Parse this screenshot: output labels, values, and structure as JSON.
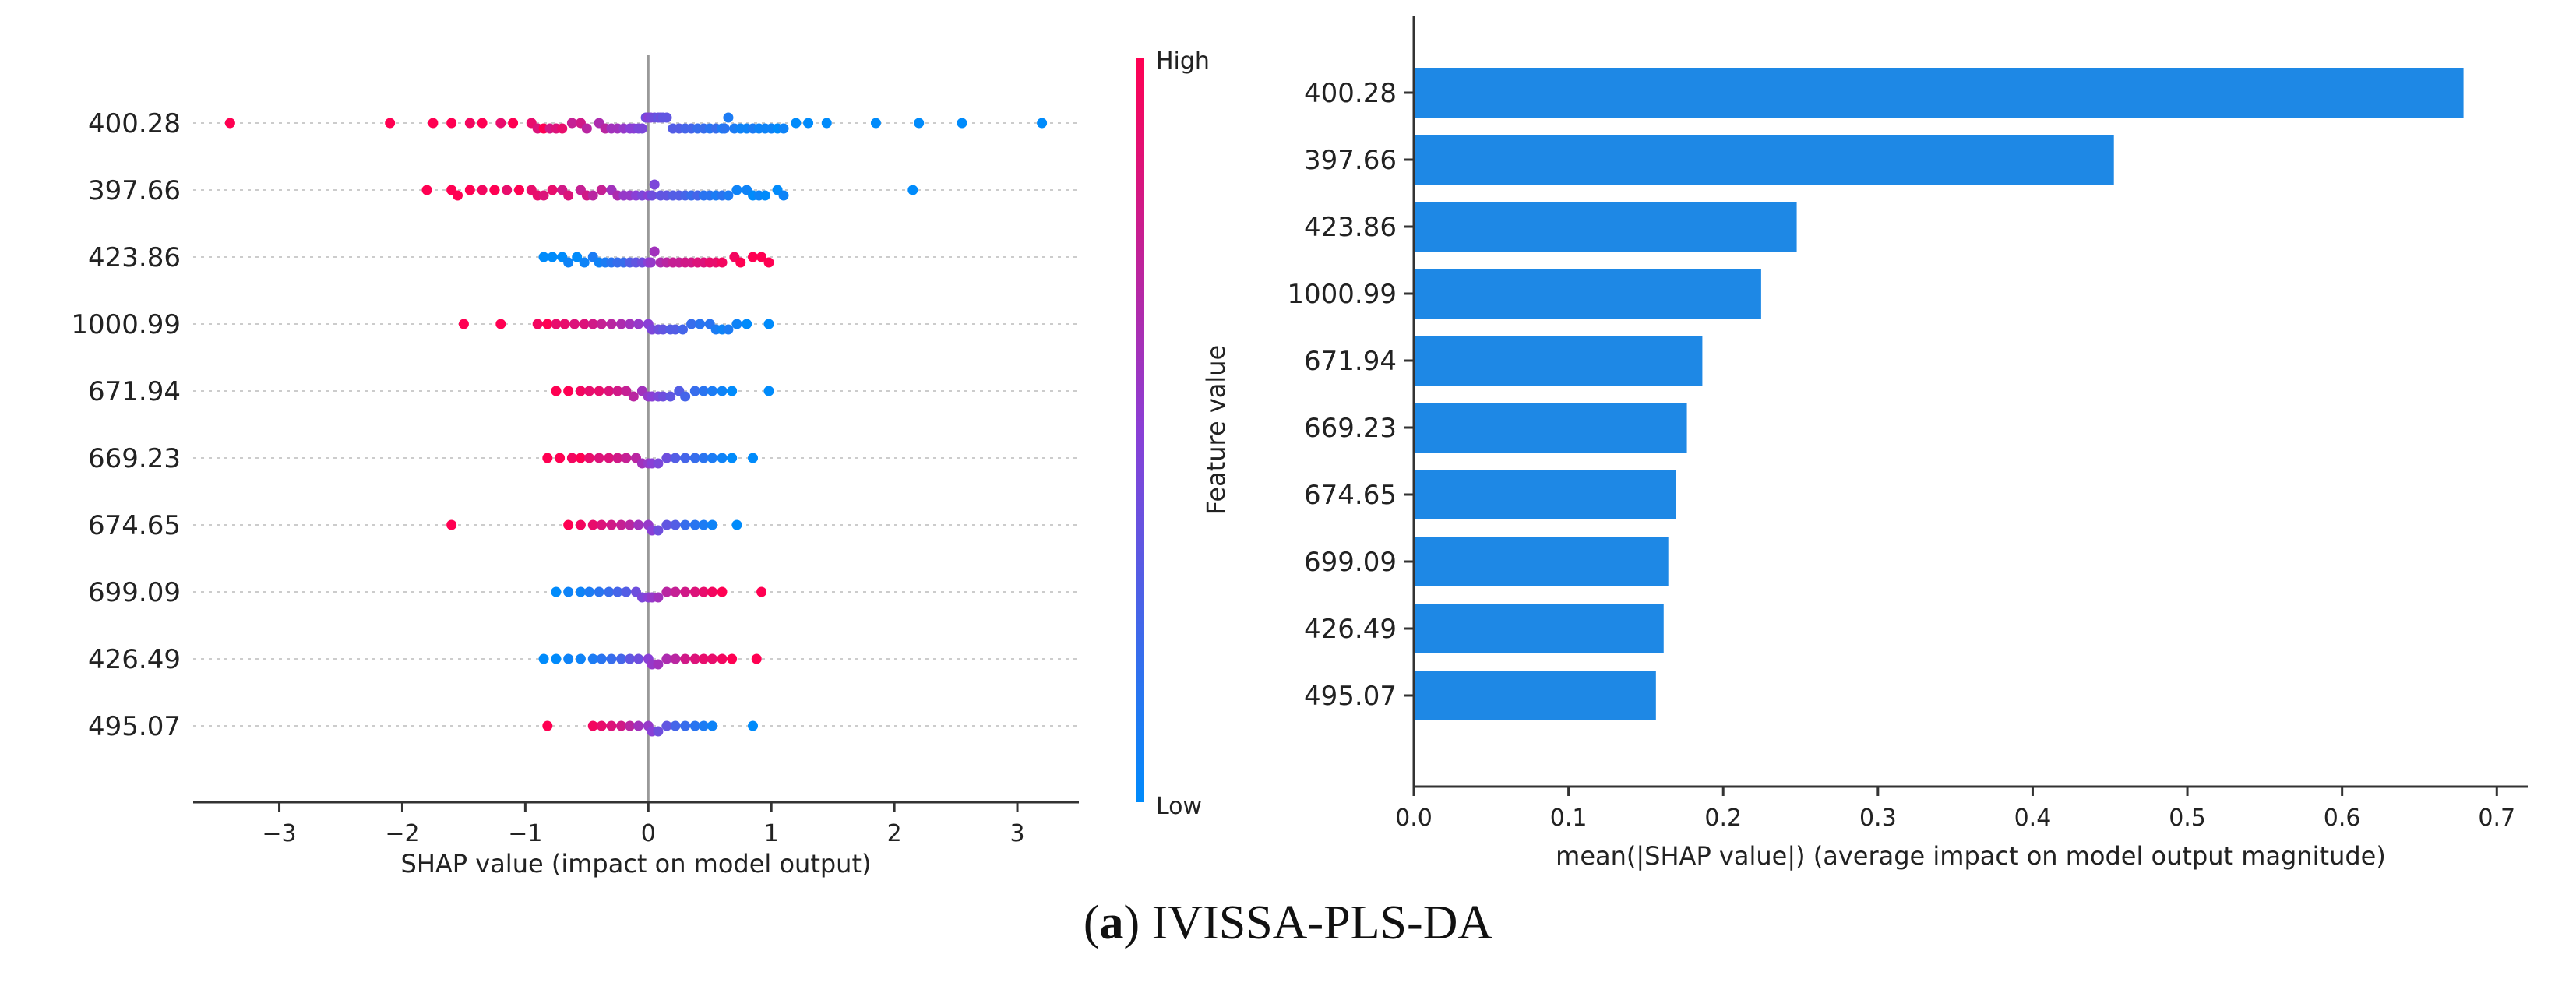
{
  "caption": {
    "label": "a",
    "text": "IVISSA-PLS-DA"
  },
  "colors": {
    "high": "#ff0052",
    "low": "#008bfb",
    "bar": "#1e88e5",
    "axis": "#333333",
    "grid": "#dddddd"
  },
  "chart_data": [
    {
      "type": "scatter",
      "subtype": "shap-beeswarm",
      "features": [
        "400.28",
        "397.66",
        "423.86",
        "1000.99",
        "671.94",
        "669.23",
        "674.65",
        "699.09",
        "426.49",
        "495.07"
      ],
      "xlabel": "SHAP value (impact on model output)",
      "xlim": [
        -3.7,
        3.5
      ],
      "xticks": [
        -3,
        -2,
        -1,
        0,
        1,
        2,
        3
      ],
      "xtick_labels": [
        "−3",
        "−2",
        "−1",
        "0",
        "1",
        "2",
        "3"
      ],
      "colorbar": {
        "high_label": "High",
        "low_label": "Low",
        "title": "Feature value"
      },
      "series": [
        {
          "feature": "400.28",
          "values": [
            -3.4,
            -2.1,
            -1.75,
            -1.6,
            -1.45,
            -1.35,
            -1.2,
            -1.1,
            -0.95,
            -0.9,
            -0.85,
            -0.8,
            -0.75,
            -0.7,
            -0.62,
            -0.55,
            -0.5,
            -0.4,
            -0.35,
            -0.3,
            -0.25,
            -0.2,
            -0.15,
            -0.12,
            -0.08,
            -0.05,
            -0.02,
            0.0,
            0.02,
            0.05,
            0.08,
            0.1,
            0.12,
            0.15,
            0.2,
            0.25,
            0.3,
            0.35,
            0.4,
            0.45,
            0.5,
            0.55,
            0.6,
            0.62,
            0.65,
            0.7,
            0.75,
            0.8,
            0.85,
            0.9,
            0.95,
            1.0,
            1.05,
            1.1,
            1.2,
            1.3,
            1.45,
            1.85,
            2.2,
            2.55,
            3.2
          ],
          "colors": [
            1,
            1,
            1,
            1,
            0.95,
            1,
            0.9,
            1,
            0.9,
            0.85,
            1,
            0.8,
            0.85,
            0.9,
            0.75,
            0.8,
            0.7,
            0.65,
            0.7,
            0.6,
            0.6,
            0.55,
            0.5,
            0.5,
            0.45,
            0.45,
            0.4,
            0.5,
            0.45,
            0.4,
            0.35,
            0.4,
            0.35,
            0.35,
            0.3,
            0.3,
            0.25,
            0.25,
            0.2,
            0.2,
            0.15,
            0.2,
            0.1,
            0.15,
            0.1,
            0.1,
            0.05,
            0.05,
            0.1,
            0.05,
            0.05,
            0.05,
            0.0,
            0.05,
            0.0,
            0.0,
            0.0,
            0.0,
            0.0,
            0.0,
            0.0
          ]
        },
        {
          "feature": "397.66",
          "values": [
            -1.8,
            -1.6,
            -1.55,
            -1.45,
            -1.35,
            -1.25,
            -1.15,
            -1.05,
            -0.95,
            -0.9,
            -0.85,
            -0.78,
            -0.7,
            -0.65,
            -0.55,
            -0.5,
            -0.45,
            -0.38,
            -0.3,
            -0.25,
            -0.2,
            -0.15,
            -0.1,
            -0.05,
            0.0,
            0.03,
            0.05,
            0.1,
            0.15,
            0.2,
            0.25,
            0.3,
            0.35,
            0.4,
            0.45,
            0.5,
            0.55,
            0.6,
            0.65,
            0.72,
            0.8,
            0.85,
            0.9,
            0.95,
            1.05,
            1.1,
            2.15
          ],
          "colors": [
            1,
            1,
            1,
            1,
            0.95,
            1,
            0.9,
            1,
            0.9,
            0.9,
            0.85,
            0.9,
            0.8,
            0.85,
            0.75,
            0.8,
            0.7,
            0.75,
            0.6,
            0.65,
            0.55,
            0.55,
            0.5,
            0.45,
            0.5,
            0.4,
            0.45,
            0.35,
            0.35,
            0.3,
            0.3,
            0.25,
            0.2,
            0.25,
            0.15,
            0.15,
            0.1,
            0.15,
            0.1,
            0.05,
            0.05,
            0.0,
            0.05,
            0.0,
            0.0,
            0.05,
            0.0
          ]
        },
        {
          "feature": "423.86",
          "values": [
            -0.85,
            -0.78,
            -0.7,
            -0.65,
            -0.58,
            -0.52,
            -0.45,
            -0.4,
            -0.35,
            -0.3,
            -0.25,
            -0.2,
            -0.15,
            -0.1,
            -0.05,
            0.0,
            0.02,
            0.05,
            0.1,
            0.15,
            0.2,
            0.25,
            0.3,
            0.35,
            0.4,
            0.45,
            0.5,
            0.55,
            0.6,
            0.7,
            0.75,
            0.85,
            0.92,
            0.98
          ],
          "colors": [
            0,
            0,
            0,
            0.05,
            0,
            0.05,
            0.1,
            0.05,
            0.1,
            0.15,
            0.2,
            0.2,
            0.3,
            0.35,
            0.4,
            0.5,
            0.55,
            0.6,
            0.65,
            0.7,
            0.75,
            0.75,
            0.8,
            0.8,
            0.85,
            0.85,
            0.9,
            0.9,
            0.95,
            0.95,
            1,
            1,
            1,
            1
          ]
        },
        {
          "feature": "1000.99",
          "values": [
            -1.5,
            -1.2,
            -0.9,
            -0.82,
            -0.75,
            -0.68,
            -0.6,
            -0.52,
            -0.45,
            -0.38,
            -0.3,
            -0.22,
            -0.15,
            -0.08,
            0.0,
            0.03,
            0.08,
            0.12,
            0.18,
            0.22,
            0.28,
            0.35,
            0.42,
            0.5,
            0.55,
            0.6,
            0.65,
            0.72,
            0.8,
            0.98
          ],
          "colors": [
            1,
            1,
            0.95,
            1,
            0.9,
            0.9,
            0.85,
            0.85,
            0.8,
            0.75,
            0.7,
            0.65,
            0.6,
            0.55,
            0.5,
            0.45,
            0.4,
            0.35,
            0.3,
            0.3,
            0.25,
            0.2,
            0.15,
            0.15,
            0.1,
            0.05,
            0.1,
            0.05,
            0,
            0
          ]
        },
        {
          "feature": "671.94",
          "values": [
            -0.75,
            -0.65,
            -0.55,
            -0.48,
            -0.4,
            -0.32,
            -0.25,
            -0.18,
            -0.12,
            -0.05,
            0.0,
            0.03,
            0.08,
            0.12,
            0.18,
            0.25,
            0.3,
            0.38,
            0.45,
            0.52,
            0.6,
            0.68,
            0.98
          ],
          "colors": [
            1,
            1,
            0.95,
            0.9,
            0.9,
            0.85,
            0.8,
            0.75,
            0.7,
            0.6,
            0.55,
            0.5,
            0.45,
            0.4,
            0.35,
            0.3,
            0.25,
            0.2,
            0.15,
            0.1,
            0.05,
            0.0,
            0.0
          ]
        },
        {
          "feature": "669.23",
          "values": [
            -0.82,
            -0.72,
            -0.62,
            -0.55,
            -0.48,
            -0.4,
            -0.32,
            -0.25,
            -0.18,
            -0.1,
            -0.05,
            0.0,
            0.03,
            0.08,
            0.15,
            0.22,
            0.3,
            0.38,
            0.45,
            0.52,
            0.6,
            0.68,
            0.85
          ],
          "colors": [
            1,
            1,
            0.95,
            1,
            0.9,
            0.85,
            0.85,
            0.8,
            0.75,
            0.7,
            0.6,
            0.55,
            0.5,
            0.45,
            0.4,
            0.3,
            0.25,
            0.2,
            0.15,
            0.1,
            0.05,
            0,
            0
          ]
        },
        {
          "feature": "674.65",
          "values": [
            -1.6,
            -0.65,
            -0.55,
            -0.45,
            -0.38,
            -0.3,
            -0.22,
            -0.15,
            -0.08,
            0.0,
            0.03,
            0.08,
            0.15,
            0.22,
            0.3,
            0.38,
            0.45,
            0.52,
            0.72
          ],
          "colors": [
            1,
            1,
            0.95,
            0.9,
            0.85,
            0.8,
            0.75,
            0.7,
            0.6,
            0.55,
            0.5,
            0.4,
            0.35,
            0.3,
            0.2,
            0.15,
            0.1,
            0.05,
            0
          ]
        },
        {
          "feature": "699.09",
          "values": [
            -0.75,
            -0.65,
            -0.55,
            -0.48,
            -0.4,
            -0.32,
            -0.25,
            -0.18,
            -0.1,
            -0.05,
            0.0,
            0.03,
            0.08,
            0.15,
            0.22,
            0.3,
            0.38,
            0.45,
            0.52,
            0.6,
            0.92
          ],
          "colors": [
            0,
            0.05,
            0.05,
            0.1,
            0.15,
            0.2,
            0.25,
            0.3,
            0.4,
            0.45,
            0.5,
            0.55,
            0.6,
            0.7,
            0.75,
            0.8,
            0.85,
            0.9,
            0.95,
            1,
            1
          ]
        },
        {
          "feature": "426.49",
          "values": [
            -0.85,
            -0.75,
            -0.65,
            -0.55,
            -0.45,
            -0.38,
            -0.3,
            -0.22,
            -0.15,
            -0.08,
            0.0,
            0.03,
            0.08,
            0.15,
            0.22,
            0.3,
            0.38,
            0.45,
            0.52,
            0.6,
            0.68,
            0.88
          ],
          "colors": [
            0,
            0,
            0.05,
            0.05,
            0.1,
            0.15,
            0.2,
            0.25,
            0.35,
            0.4,
            0.5,
            0.55,
            0.6,
            0.65,
            0.7,
            0.8,
            0.85,
            0.9,
            0.9,
            0.95,
            1,
            1
          ]
        },
        {
          "feature": "495.07",
          "values": [
            -0.82,
            -0.45,
            -0.38,
            -0.3,
            -0.22,
            -0.15,
            -0.08,
            0.0,
            0.03,
            0.08,
            0.15,
            0.22,
            0.3,
            0.38,
            0.45,
            0.52,
            0.85
          ],
          "colors": [
            1,
            0.95,
            0.9,
            0.85,
            0.8,
            0.7,
            0.6,
            0.55,
            0.5,
            0.4,
            0.35,
            0.25,
            0.2,
            0.15,
            0.1,
            0.05,
            0
          ]
        }
      ]
    },
    {
      "type": "bar",
      "orientation": "horizontal",
      "categories": [
        "400.28",
        "397.66",
        "423.86",
        "1000.99",
        "671.94",
        "669.23",
        "674.65",
        "699.09",
        "426.49",
        "495.07"
      ],
      "values": [
        0.678,
        0.452,
        0.247,
        0.224,
        0.186,
        0.176,
        0.169,
        0.164,
        0.161,
        0.156
      ],
      "xlabel": "mean(|SHAP value|) (average impact on model output magnitude)",
      "ylabel": "Feature value",
      "xlim": [
        0,
        0.72
      ],
      "xticks": [
        0.0,
        0.1,
        0.2,
        0.3,
        0.4,
        0.5,
        0.6,
        0.7
      ],
      "xtick_labels": [
        "0.0",
        "0.1",
        "0.2",
        "0.3",
        "0.4",
        "0.5",
        "0.6",
        "0.7"
      ]
    }
  ]
}
